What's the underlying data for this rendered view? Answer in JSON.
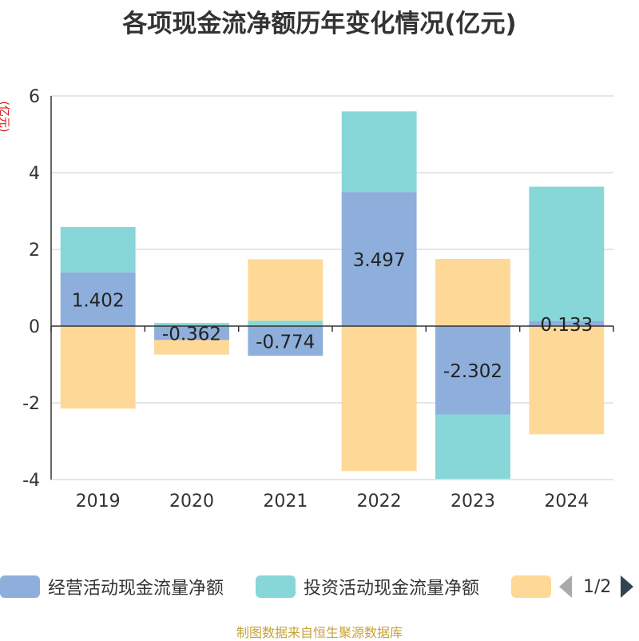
{
  "title": "各项现金流净额历年变化情况(亿元)",
  "y_unit": "(亿元)",
  "source": "制图数据来自恒生聚源数据库",
  "chart_data": {
    "type": "bar",
    "stacked": true,
    "categories": [
      "2019",
      "2020",
      "2021",
      "2022",
      "2023",
      "2024"
    ],
    "ylim": [
      -4,
      6
    ],
    "yticks": [
      -4,
      -2,
      0,
      2,
      4,
      6
    ],
    "grid": true,
    "legend_position": "bottom",
    "series": [
      {
        "name": "经营活动现金流量净额",
        "color": "#8eaedb",
        "values": [
          1.402,
          -0.362,
          -0.774,
          3.497,
          -2.302,
          0.133
        ],
        "labels": [
          "1.402",
          "-0.362",
          "-0.774",
          "3.497",
          "-2.302",
          "0.133"
        ]
      },
      {
        "name": "投资活动现金流量净额",
        "color": "#87d6d8",
        "values": [
          1.18,
          0.08,
          0.14,
          2.1,
          -1.68,
          3.5
        ]
      },
      {
        "name": "",
        "color": "#fed897",
        "values": [
          -2.15,
          -0.38,
          1.6,
          -3.78,
          1.75,
          -2.82
        ]
      }
    ]
  },
  "legend": {
    "items": [
      {
        "label": "经营活动现金流量净额",
        "color": "#8eaedb"
      },
      {
        "label": "投资活动现金流量净额",
        "color": "#87d6d8"
      },
      {
        "label": "",
        "color": "#fed897"
      }
    ],
    "pager": "1/2"
  }
}
